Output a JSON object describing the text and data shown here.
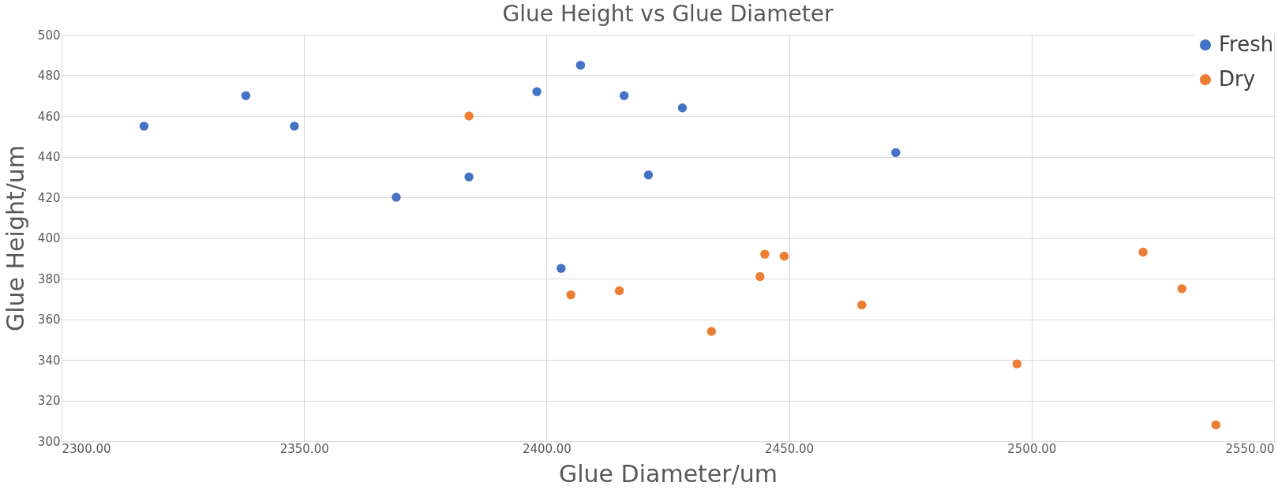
{
  "chart_data": {
    "type": "scatter",
    "title": "Glue Height vs Glue Diameter",
    "xlabel": "Glue Diameter/um",
    "ylabel": "Glue Height/um",
    "xlim": [
      2300,
      2550
    ],
    "xticks": [
      {
        "value": 2300,
        "label": "2300.00"
      },
      {
        "value": 2350,
        "label": "2350.00"
      },
      {
        "value": 2400,
        "label": "2400.00"
      },
      {
        "value": 2450,
        "label": "2450.00"
      },
      {
        "value": 2500,
        "label": "2500.00"
      },
      {
        "value": 2550,
        "label": "2550.00"
      }
    ],
    "ylim": [
      300,
      500
    ],
    "yticks": [
      300,
      320,
      340,
      360,
      380,
      400,
      420,
      440,
      460,
      480,
      500
    ],
    "grid": true,
    "legend": "top right",
    "marker": "circle",
    "series": [
      {
        "name": "Fresh",
        "color": "#4472c4",
        "x": [
          2317,
          2338,
          2348,
          2369,
          2384,
          2398,
          2407,
          2416,
          2428,
          2421,
          2403,
          2472
        ],
        "values": [
          455,
          470,
          455,
          420,
          430,
          472,
          485,
          470,
          464,
          431,
          385,
          442
        ]
      },
      {
        "name": "Dry",
        "color": "#ed7d31",
        "x": [
          2384,
          2405,
          2415,
          2434,
          2444,
          2445,
          2449,
          2465,
          2497,
          2523,
          2531,
          2538
        ],
        "values": [
          460,
          372,
          374,
          354,
          381,
          392,
          391,
          367,
          338,
          393,
          375,
          308
        ]
      }
    ]
  }
}
